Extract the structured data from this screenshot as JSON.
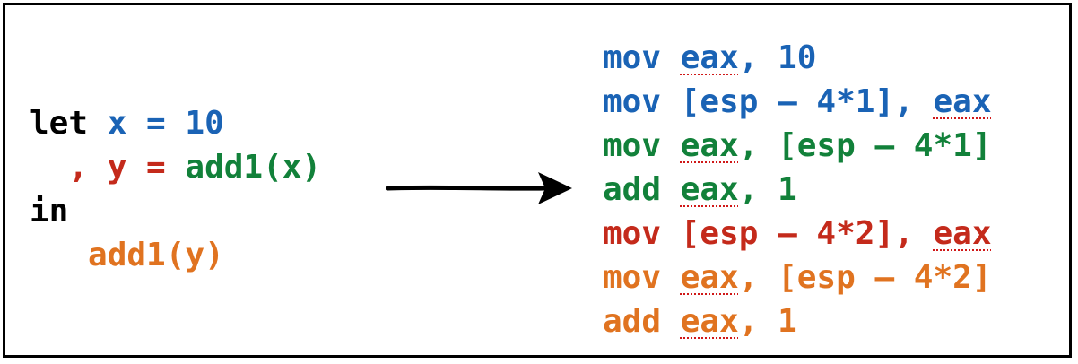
{
  "colors": {
    "black": "#000000",
    "blue": "#1a63b5",
    "green": "#12813a",
    "red": "#c42a1b",
    "orange": "#e07320"
  },
  "source": {
    "lines": [
      [
        {
          "text": "let ",
          "color": "black"
        },
        {
          "text": "x = 10",
          "color": "blue"
        }
      ],
      [
        {
          "text": "  , y = ",
          "color": "red"
        },
        {
          "text": "add1(x)",
          "color": "green"
        }
      ],
      [
        {
          "text": "in",
          "color": "black"
        }
      ],
      [
        {
          "text": "   add1(y)",
          "color": "orange"
        }
      ]
    ]
  },
  "assembly": {
    "lines": [
      [
        {
          "text": "mov ",
          "color": "blue"
        },
        {
          "text": "eax",
          "color": "blue",
          "reg": true
        },
        {
          "text": ", 10",
          "color": "blue"
        }
      ],
      [
        {
          "text": "mov [esp – 4*1], ",
          "color": "blue"
        },
        {
          "text": "eax",
          "color": "blue",
          "reg": true
        }
      ],
      [
        {
          "text": "mov ",
          "color": "green"
        },
        {
          "text": "eax",
          "color": "green",
          "reg": true
        },
        {
          "text": ", [esp – 4*1]",
          "color": "green"
        }
      ],
      [
        {
          "text": "add ",
          "color": "green"
        },
        {
          "text": "eax",
          "color": "green",
          "reg": true
        },
        {
          "text": ", 1",
          "color": "green"
        }
      ],
      [
        {
          "text": "mov [esp – 4*2], ",
          "color": "red"
        },
        {
          "text": "eax",
          "color": "red",
          "reg": true
        }
      ],
      [
        {
          "text": "mov ",
          "color": "orange"
        },
        {
          "text": "eax",
          "color": "orange",
          "reg": true
        },
        {
          "text": ", [esp – 4*2]",
          "color": "orange"
        }
      ],
      [
        {
          "text": "add ",
          "color": "orange"
        },
        {
          "text": "eax",
          "color": "orange",
          "reg": true
        },
        {
          "text": ", 1",
          "color": "orange"
        }
      ]
    ]
  }
}
